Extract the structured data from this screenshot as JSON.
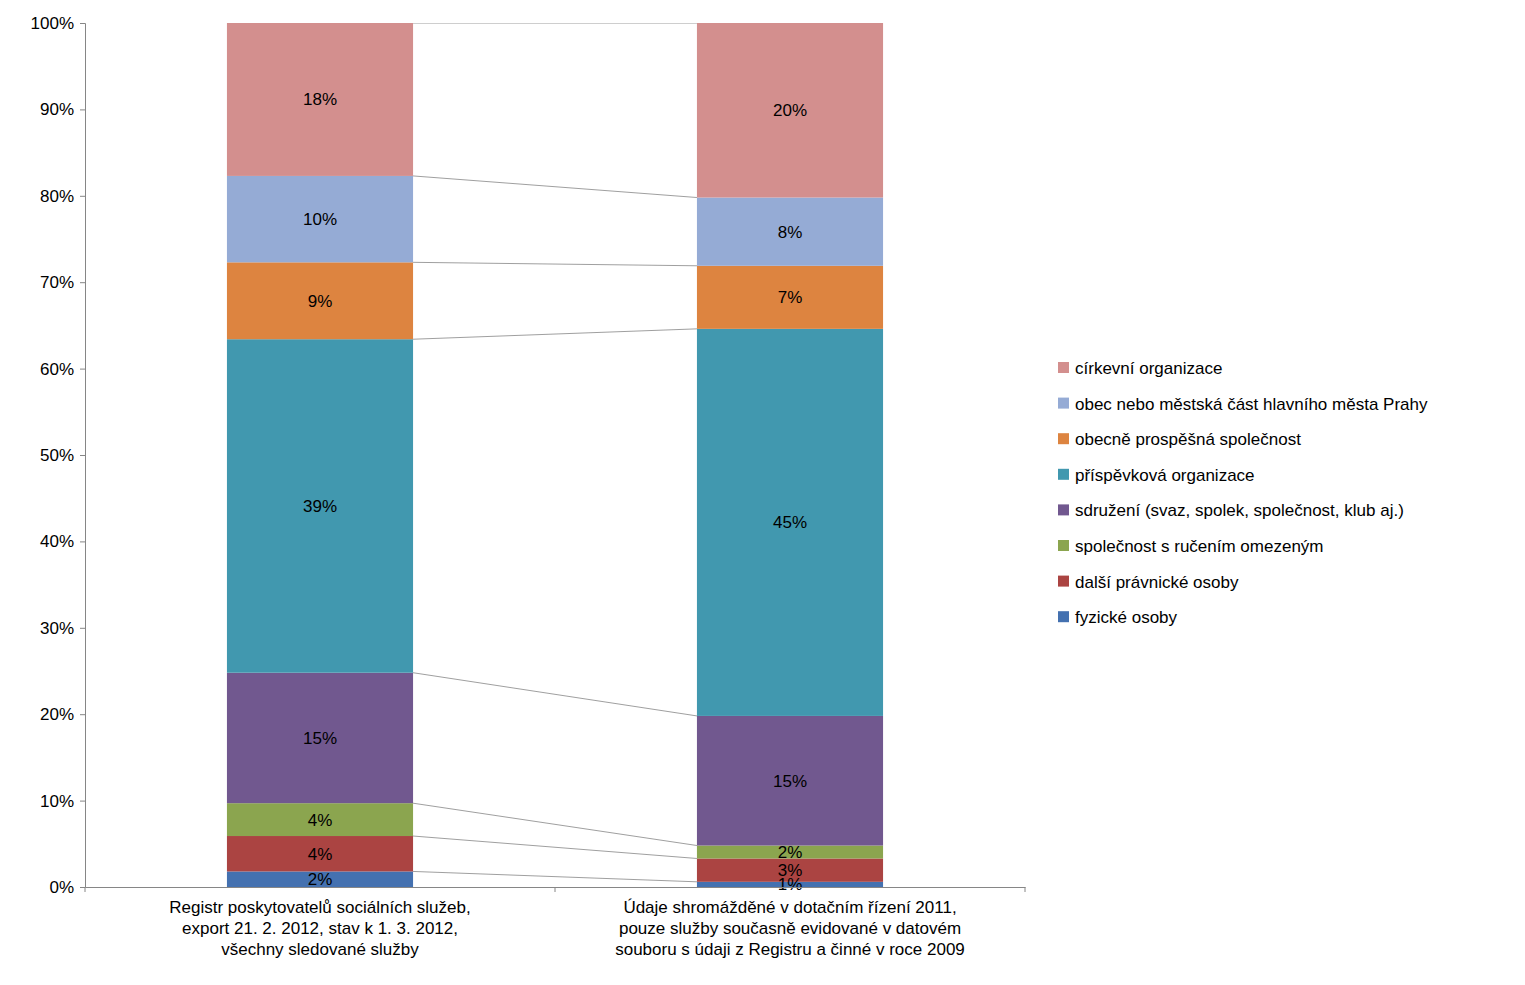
{
  "chart_data": {
    "type": "bar",
    "stacked": true,
    "data_labels": true,
    "legend": "right",
    "categories": [
      "Registr poskytovatelů sociálních služeb,\nexport 21. 2. 2012, stav k 1. 3. 2012,\nvšechny sledované služby",
      "Údaje shromážděné v dotačním řízení 2011,\npouze služby současně evidované v datovém\nsouboru s údaji z Registru a činné v roce 2009"
    ],
    "ylim": [
      0,
      100
    ],
    "yticks": [
      {
        "value": 0,
        "label": "0%"
      },
      {
        "value": 10,
        "label": "10%"
      },
      {
        "value": 20,
        "label": "20%"
      },
      {
        "value": 30,
        "label": "30%"
      },
      {
        "value": 40,
        "label": "40%"
      },
      {
        "value": 50,
        "label": "50%"
      },
      {
        "value": 60,
        "label": "60%"
      },
      {
        "value": 70,
        "label": "70%"
      },
      {
        "value": 80,
        "label": "80%"
      },
      {
        "value": 90,
        "label": "90%"
      },
      {
        "value": 100,
        "label": "100%"
      }
    ],
    "series": [
      {
        "name": "fyzické osoby",
        "color": "#4471b0",
        "values": [
          1.8,
          0.6
        ],
        "value_labels": [
          "2%",
          "1%"
        ]
      },
      {
        "name": "další právnické osoby",
        "color": "#ab4442",
        "values": [
          4.1,
          2.7
        ],
        "value_labels": [
          "4%",
          "3%"
        ]
      },
      {
        "name": "společnost s ručením omezeným",
        "color": "#8ba54f",
        "values": [
          3.8,
          1.5
        ],
        "value_labels": [
          "4%",
          "2%"
        ]
      },
      {
        "name": "sdružení (svaz, spolek, společnost, klub aj.)",
        "color": "#71588f",
        "values": [
          15.1,
          15.0
        ],
        "value_labels": [
          "15%",
          "15%"
        ]
      },
      {
        "name": "příspěvková organizace",
        "color": "#4198af",
        "values": [
          38.6,
          44.8
        ],
        "value_labels": [
          "39%",
          "45%"
        ]
      },
      {
        "name": "obecně prospěšná společnost",
        "color": "#dd8440",
        "values": [
          8.9,
          7.3
        ],
        "value_labels": [
          "9%",
          "7%"
        ]
      },
      {
        "name": "obec nebo městská část hlavního města Prahy",
        "color": "#95abd5",
        "values": [
          10.0,
          7.9
        ],
        "value_labels": [
          "10%",
          "8%"
        ]
      },
      {
        "name": "církevní organizace",
        "color": "#d38f8e",
        "values": [
          17.7,
          20.2
        ],
        "value_labels": [
          "18%",
          "20%"
        ]
      }
    ]
  }
}
